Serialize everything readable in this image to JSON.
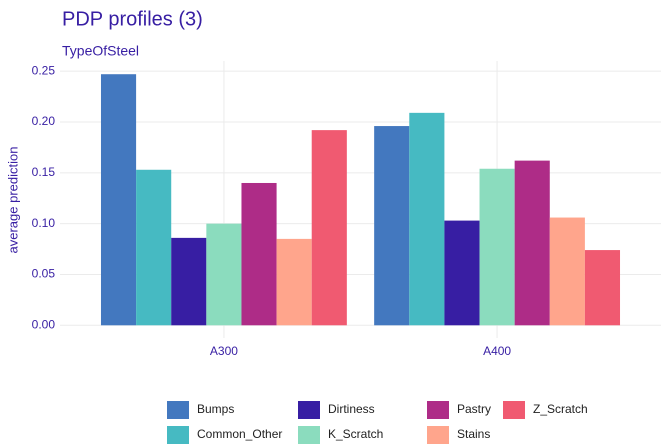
{
  "chart_data": {
    "type": "bar",
    "title": "PDP profiles (3)",
    "subtitle": "TypeOfSteel",
    "y_label": "average prediction",
    "categories": [
      "A300",
      "A400"
    ],
    "series": [
      {
        "name": "Bumps",
        "color": "#4378bf",
        "values": [
          0.247,
          0.196
        ]
      },
      {
        "name": "Common_Other",
        "color": "#46bac2",
        "values": [
          0.153,
          0.209
        ]
      },
      {
        "name": "Dirtiness",
        "color": "#371ea3",
        "values": [
          0.086,
          0.103
        ]
      },
      {
        "name": "K_Scratch",
        "color": "#8bdcbe",
        "values": [
          0.1,
          0.154
        ]
      },
      {
        "name": "Pastry",
        "color": "#ae2c87",
        "values": [
          0.14,
          0.162
        ]
      },
      {
        "name": "Stains",
        "color": "#ffa58c",
        "values": [
          0.085,
          0.106
        ]
      },
      {
        "name": "Z_Scratch",
        "color": "#f05a71",
        "values": [
          0.192,
          0.074
        ]
      }
    ],
    "ylim": [
      -0.0125,
      0.26
    ],
    "yticks": [
      {
        "value": 0,
        "label": "0.00"
      },
      {
        "value": 0.05,
        "label": "0.05"
      },
      {
        "value": 0.1,
        "label": "0.10"
      },
      {
        "value": 0.15,
        "label": "0.15"
      },
      {
        "value": 0.2,
        "label": "0.20"
      },
      {
        "value": 0.25,
        "label": "0.25"
      }
    ],
    "grid": true,
    "legend": "bottom"
  }
}
